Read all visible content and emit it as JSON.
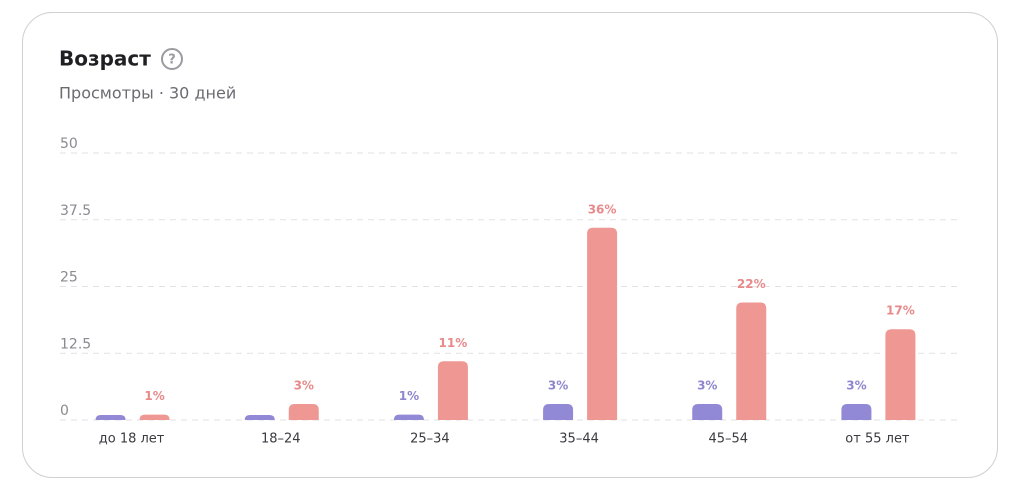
{
  "chart_data": {
    "type": "bar",
    "title": "Возраст",
    "subtitle": "Просмотры · 30 дней",
    "categories": [
      "до 18 лет",
      "18–24",
      "25–34",
      "35–44",
      "45–54",
      "от 55 лет"
    ],
    "series": [
      {
        "color": "#9189d6",
        "label_color": "#8e86cf",
        "values": [
          0.4,
          0.4,
          1,
          3,
          3,
          3
        ],
        "value_labels": [
          null,
          null,
          "1%",
          "3%",
          "3%",
          "3%"
        ]
      },
      {
        "color": "#ef9793",
        "label_color": "#e88a8a",
        "values": [
          1,
          3,
          11,
          36,
          22,
          17
        ],
        "value_labels": [
          "1%",
          "3%",
          "11%",
          "36%",
          "22%",
          "17%"
        ]
      }
    ],
    "ylim": [
      0,
      50
    ],
    "yticks": [
      0,
      12.5,
      25,
      37.5,
      50
    ],
    "grid": true
  }
}
